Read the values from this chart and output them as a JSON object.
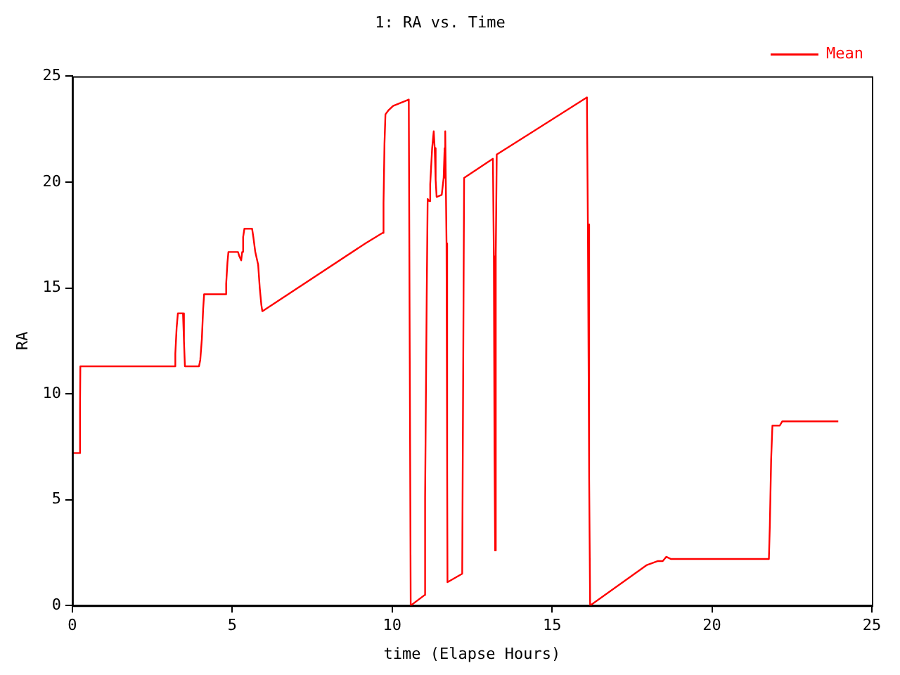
{
  "chart_data": {
    "type": "line",
    "title": "1: RA vs. Time",
    "xlabel": "time (Elapse Hours)",
    "ylabel": "RA",
    "xlim": [
      0,
      25
    ],
    "xticks": [
      0,
      5,
      10,
      15,
      20,
      25
    ],
    "ylim": [
      0,
      25
    ],
    "yticks": [
      0,
      5,
      10,
      15,
      20,
      25
    ],
    "legend": "top right",
    "marker": "none",
    "line_style": "solid",
    "series": [
      {
        "name": "Mean",
        "color": "#ff0000",
        "x": [
          0.0,
          0.23,
          0.24,
          0.25,
          3.2,
          3.22,
          3.26,
          3.3,
          3.46,
          3.49,
          3.52,
          3.96,
          4.0,
          4.05,
          4.09,
          4.12,
          4.78,
          4.81,
          4.85,
          4.88,
          5.18,
          5.22,
          5.28,
          5.31,
          5.34,
          5.38,
          5.62,
          5.66,
          5.72,
          5.81,
          5.86,
          5.91,
          5.94,
          9.16,
          9.7,
          9.73,
          9.76,
          9.79,
          9.89,
          10.03,
          10.52,
          10.55,
          10.58,
          11.02,
          11.03,
          11.08,
          11.11,
          11.16,
          11.19,
          11.25,
          11.3,
          11.33,
          11.36,
          11.39,
          11.55,
          11.61,
          11.64,
          11.65,
          11.67,
          11.7,
          11.72,
          11.73,
          12.19,
          12.22,
          12.25,
          13.15,
          13.18,
          13.2,
          13.22,
          13.24,
          13.27,
          16.09,
          16.12,
          16.16,
          16.19,
          17.95,
          18.31,
          18.46,
          18.57,
          18.71,
          21.78,
          21.81,
          21.85,
          21.89,
          22.12,
          22.2,
          23.95
        ],
        "values": [
          7.2,
          7.2,
          9.3,
          11.3,
          11.3,
          11.9,
          13.1,
          13.8,
          13.8,
          12.5,
          11.3,
          11.3,
          11.6,
          12.6,
          14.0,
          14.7,
          14.7,
          15.2,
          16.2,
          16.7,
          16.7,
          16.5,
          16.3,
          16.7,
          17.4,
          17.8,
          17.8,
          17.4,
          16.7,
          16.1,
          15.0,
          14.2,
          13.9,
          17.1,
          17.6,
          19.0,
          21.8,
          23.2,
          23.4,
          23.6,
          23.9,
          11.9,
          0.0,
          0.5,
          5.1,
          14.5,
          19.2,
          19.1,
          19.9,
          21.6,
          22.4,
          21.6,
          20.1,
          19.3,
          19.4,
          20.2,
          21.6,
          20.2,
          22.4,
          17.1,
          6.4,
          1.1,
          1.5,
          10.8,
          20.2,
          21.1,
          16.5,
          7.3,
          2.6,
          16.6,
          21.3,
          24.0,
          18.0,
          6.0,
          0.0,
          1.9,
          2.1,
          2.1,
          2.3,
          2.2,
          2.2,
          3.8,
          6.9,
          8.5,
          8.5,
          8.7,
          8.7
        ]
      }
    ]
  }
}
